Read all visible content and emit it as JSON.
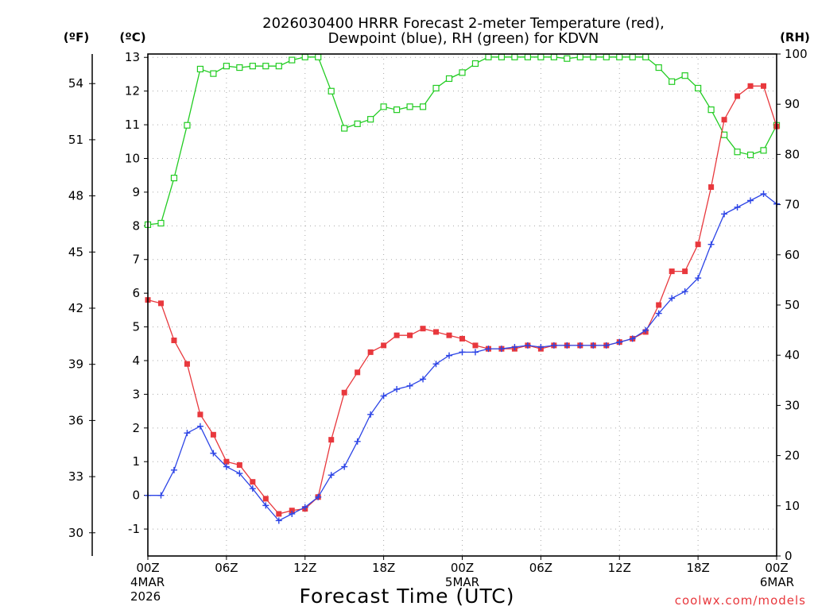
{
  "chart_data": {
    "type": "line",
    "title_line1": "2026030400 HRRR Forecast 2-meter Temperature (red),",
    "title_line2": "Dewpoint (blue), RH (green) for KDVN",
    "xlabel": "Forecast Time (UTC)",
    "credit": "coolwx.com/models",
    "units": {
      "fahrenheit": "(ºF)",
      "celsius": "(ºC)",
      "rh": "(RH)"
    },
    "x_range_hours": [
      0,
      48
    ],
    "celsius_range": [
      -1.8,
      13.1
    ],
    "rh_range": [
      0,
      100
    ],
    "x_ticks": [
      {
        "hour": 0,
        "label": "00Z",
        "sub1": "4MAR",
        "sub2": "2026"
      },
      {
        "hour": 6,
        "label": "06Z",
        "sub1": "",
        "sub2": ""
      },
      {
        "hour": 12,
        "label": "12Z",
        "sub1": "",
        "sub2": ""
      },
      {
        "hour": 18,
        "label": "18Z",
        "sub1": "",
        "sub2": ""
      },
      {
        "hour": 24,
        "label": "00Z",
        "sub1": "5MAR",
        "sub2": ""
      },
      {
        "hour": 30,
        "label": "06Z",
        "sub1": "",
        "sub2": ""
      },
      {
        "hour": 36,
        "label": "12Z",
        "sub1": "",
        "sub2": ""
      },
      {
        "hour": 42,
        "label": "18Z",
        "sub1": "",
        "sub2": ""
      },
      {
        "hour": 48,
        "label": "00Z",
        "sub1": "6MAR",
        "sub2": ""
      }
    ],
    "celsius_ticks": [
      "-1",
      "0",
      "1",
      "2",
      "3",
      "4",
      "5",
      "6",
      "7",
      "8",
      "9",
      "10",
      "11",
      "12",
      "13"
    ],
    "fahrenheit_ticks": [
      "30",
      "33",
      "36",
      "39",
      "42",
      "45",
      "48",
      "51",
      "54"
    ],
    "rh_ticks": [
      "0",
      "10",
      "20",
      "30",
      "40",
      "50",
      "60",
      "70",
      "80",
      "90",
      "100"
    ],
    "series": [
      {
        "key": "temperature",
        "units": "°C",
        "color": "#e8383d",
        "marker": "filled-square",
        "values": [
          5.8,
          5.7,
          4.6,
          3.9,
          2.4,
          1.8,
          1.0,
          0.9,
          0.4,
          -0.1,
          -0.55,
          -0.45,
          -0.4,
          -0.05,
          1.65,
          3.05,
          3.65,
          4.25,
          4.45,
          4.75,
          4.75,
          4.95,
          4.85,
          4.75,
          4.65,
          4.45,
          4.35,
          4.35,
          4.35,
          4.45,
          4.35,
          4.45,
          4.45,
          4.45,
          4.45,
          4.45,
          4.55,
          4.65,
          4.85,
          5.65,
          6.65,
          6.65,
          7.45,
          9.15,
          11.15,
          11.85,
          12.15,
          12.15,
          10.95
        ]
      },
      {
        "key": "dewpoint",
        "units": "°C",
        "color": "#2c44e6",
        "marker": "plus",
        "values": [
          0.0,
          0.0,
          0.75,
          1.85,
          2.05,
          1.25,
          0.85,
          0.65,
          0.2,
          -0.3,
          -0.75,
          -0.55,
          -0.35,
          -0.05,
          0.6,
          0.85,
          1.6,
          2.4,
          2.95,
          3.15,
          3.25,
          3.45,
          3.9,
          4.15,
          4.25,
          4.25,
          4.35,
          4.35,
          4.4,
          4.45,
          4.4,
          4.45,
          4.45,
          4.45,
          4.45,
          4.45,
          4.55,
          4.65,
          4.9,
          5.4,
          5.85,
          6.05,
          6.45,
          7.45,
          8.35,
          8.55,
          8.75,
          8.95,
          8.65
        ]
      },
      {
        "key": "relative_humidity",
        "units": "%",
        "color": "#22cc22",
        "marker": "open-square",
        "values": [
          66,
          66.3,
          75.3,
          85.8,
          97.0,
          96.1,
          97.6,
          97.3,
          97.6,
          97.6,
          97.6,
          98.8,
          99.4,
          99.4,
          92.6,
          85.2,
          86.1,
          87.0,
          89.5,
          88.9,
          89.5,
          89.5,
          93.2,
          95.1,
          96.3,
          98.1,
          99.4,
          99.4,
          99.4,
          99.4,
          99.4,
          99.4,
          99.1,
          99.4,
          99.4,
          99.4,
          99.4,
          99.4,
          99.4,
          97.3,
          94.5,
          95.7,
          93.2,
          88.9,
          83.9,
          80.5,
          79.9,
          80.8,
          85.8
        ]
      }
    ]
  }
}
